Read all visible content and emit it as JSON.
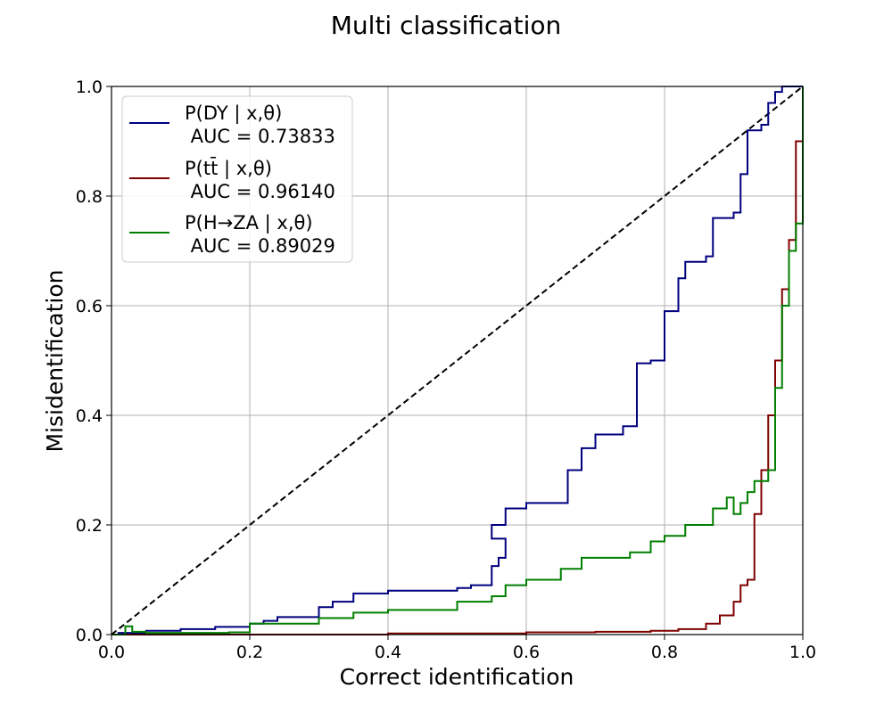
{
  "chart_data": {
    "type": "line",
    "title": "Multi classification",
    "xlabel": "Correct identification",
    "ylabel": "Misidentification",
    "xlim": [
      0.0,
      1.0
    ],
    "ylim": [
      0.0,
      1.0
    ],
    "xticks": [
      "0.0",
      "0.2",
      "0.4",
      "0.6",
      "0.8",
      "1.0"
    ],
    "yticks": [
      "0.0",
      "0.2",
      "0.4",
      "0.6",
      "0.8",
      "1.0"
    ],
    "grid": true,
    "legend_position": "top-left",
    "diagonal": {
      "style": "dashed",
      "color": "#000000",
      "points": [
        [
          0,
          0
        ],
        [
          1,
          1
        ]
      ]
    },
    "series": [
      {
        "name": "P(DY | x,θ)",
        "legend_line1": "P(DY | x,θ)",
        "legend_line2": " AUC = 0.73833",
        "auc": 0.73833,
        "color": "#00007f",
        "points": [
          [
            0.0,
            0.0
          ],
          [
            0.01,
            0.003
          ],
          [
            0.05,
            0.007
          ],
          [
            0.1,
            0.01
          ],
          [
            0.15,
            0.014
          ],
          [
            0.2,
            0.02
          ],
          [
            0.22,
            0.025
          ],
          [
            0.24,
            0.032
          ],
          [
            0.3,
            0.05
          ],
          [
            0.32,
            0.06
          ],
          [
            0.35,
            0.075
          ],
          [
            0.4,
            0.08
          ],
          [
            0.5,
            0.085
          ],
          [
            0.52,
            0.09
          ],
          [
            0.55,
            0.1
          ],
          [
            0.55,
            0.125
          ],
          [
            0.56,
            0.14
          ],
          [
            0.57,
            0.175
          ],
          [
            0.55,
            0.2
          ],
          [
            0.57,
            0.23
          ],
          [
            0.6,
            0.24
          ],
          [
            0.66,
            0.25
          ],
          [
            0.66,
            0.3
          ],
          [
            0.68,
            0.34
          ],
          [
            0.7,
            0.365
          ],
          [
            0.74,
            0.38
          ],
          [
            0.76,
            0.44
          ],
          [
            0.76,
            0.495
          ],
          [
            0.78,
            0.5
          ],
          [
            0.8,
            0.51
          ],
          [
            0.8,
            0.59
          ],
          [
            0.82,
            0.65
          ],
          [
            0.83,
            0.68
          ],
          [
            0.86,
            0.69
          ],
          [
            0.87,
            0.76
          ],
          [
            0.9,
            0.77
          ],
          [
            0.91,
            0.84
          ],
          [
            0.92,
            0.92
          ],
          [
            0.94,
            0.93
          ],
          [
            0.95,
            0.97
          ],
          [
            0.96,
            0.99
          ],
          [
            0.97,
            1.0
          ],
          [
            1.0,
            1.0
          ]
        ]
      },
      {
        "name": "P(tt̄ | x,θ)",
        "legend_line1": "P(tt̄ | x,θ)",
        "legend_line2": " AUC = 0.96140",
        "auc": 0.9614,
        "color": "#7f0000",
        "points": [
          [
            0.0,
            0.0
          ],
          [
            0.2,
            0.0
          ],
          [
            0.4,
            0.002
          ],
          [
            0.6,
            0.004
          ],
          [
            0.7,
            0.005
          ],
          [
            0.78,
            0.007
          ],
          [
            0.82,
            0.01
          ],
          [
            0.86,
            0.02
          ],
          [
            0.88,
            0.035
          ],
          [
            0.9,
            0.06
          ],
          [
            0.91,
            0.09
          ],
          [
            0.92,
            0.1
          ],
          [
            0.93,
            0.12
          ],
          [
            0.93,
            0.22
          ],
          [
            0.94,
            0.23
          ],
          [
            0.94,
            0.3
          ],
          [
            0.95,
            0.35
          ],
          [
            0.95,
            0.4
          ],
          [
            0.96,
            0.45
          ],
          [
            0.96,
            0.5
          ],
          [
            0.97,
            0.55
          ],
          [
            0.97,
            0.63
          ],
          [
            0.98,
            0.67
          ],
          [
            0.98,
            0.72
          ],
          [
            0.99,
            0.76
          ],
          [
            0.99,
            0.9
          ],
          [
            1.0,
            1.0
          ]
        ]
      },
      {
        "name": "P(H→ZA | x,θ)",
        "legend_line1": "P(H→ZA | x,θ)",
        "legend_line2": " AUC = 0.89029",
        "auc": 0.89029,
        "color": "#007f00",
        "points": [
          [
            0.0,
            0.0
          ],
          [
            0.02,
            0.015
          ],
          [
            0.03,
            0.005
          ],
          [
            0.05,
            0.003
          ],
          [
            0.1,
            0.003
          ],
          [
            0.17,
            0.004
          ],
          [
            0.2,
            0.02
          ],
          [
            0.3,
            0.03
          ],
          [
            0.35,
            0.04
          ],
          [
            0.4,
            0.045
          ],
          [
            0.5,
            0.06
          ],
          [
            0.55,
            0.07
          ],
          [
            0.57,
            0.09
          ],
          [
            0.6,
            0.1
          ],
          [
            0.65,
            0.12
          ],
          [
            0.68,
            0.14
          ],
          [
            0.75,
            0.15
          ],
          [
            0.78,
            0.17
          ],
          [
            0.8,
            0.18
          ],
          [
            0.83,
            0.2
          ],
          [
            0.87,
            0.23
          ],
          [
            0.89,
            0.25
          ],
          [
            0.9,
            0.22
          ],
          [
            0.91,
            0.24
          ],
          [
            0.92,
            0.26
          ],
          [
            0.93,
            0.28
          ],
          [
            0.95,
            0.3
          ],
          [
            0.96,
            0.34
          ],
          [
            0.96,
            0.45
          ],
          [
            0.97,
            0.5
          ],
          [
            0.97,
            0.6
          ],
          [
            0.98,
            0.7
          ],
          [
            0.99,
            0.75
          ],
          [
            1.0,
            1.0
          ]
        ]
      }
    ]
  }
}
